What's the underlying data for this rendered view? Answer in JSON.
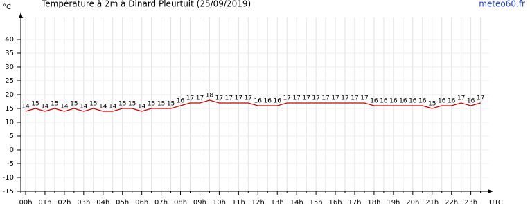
{
  "chart_data": {
    "type": "line",
    "title": "Température à 2m à Dinard Pleurtuit (25/09/2019)",
    "source": "meteo60.fr",
    "y_label": "°C",
    "x_label": "UTC",
    "categories": [
      "00h",
      null,
      "01h",
      null,
      "02h",
      null,
      "03h",
      null,
      "04h",
      null,
      "05h",
      null,
      "06h",
      null,
      "07h",
      null,
      "08h",
      null,
      "09h",
      null,
      "10h",
      null,
      "11h",
      null,
      "12h",
      null,
      "13h",
      null,
      "14h",
      null,
      "15h",
      null,
      "16h",
      null,
      "17h",
      null,
      "18h",
      null,
      "19h",
      null,
      "20h",
      null,
      "21h",
      null,
      "22h",
      null,
      "23h",
      null
    ],
    "series": [
      {
        "name": "Température",
        "color": "#cc0000",
        "values": [
          14,
          15,
          14,
          15,
          14,
          15,
          14,
          15,
          14,
          14,
          15,
          15,
          14,
          15,
          15,
          15,
          16,
          17,
          17,
          18,
          17,
          17,
          17,
          17,
          16,
          16,
          16,
          17,
          17,
          17,
          17,
          17,
          17,
          17,
          17,
          17,
          16,
          16,
          16,
          16,
          16,
          16,
          15,
          16,
          16,
          17,
          16,
          17
        ]
      }
    ],
    "ylim": [
      -15,
      48
    ],
    "yticks": [
      -15,
      -10,
      -5,
      0,
      5,
      10,
      15,
      20,
      25,
      30,
      35,
      40
    ],
    "grid": true
  }
}
